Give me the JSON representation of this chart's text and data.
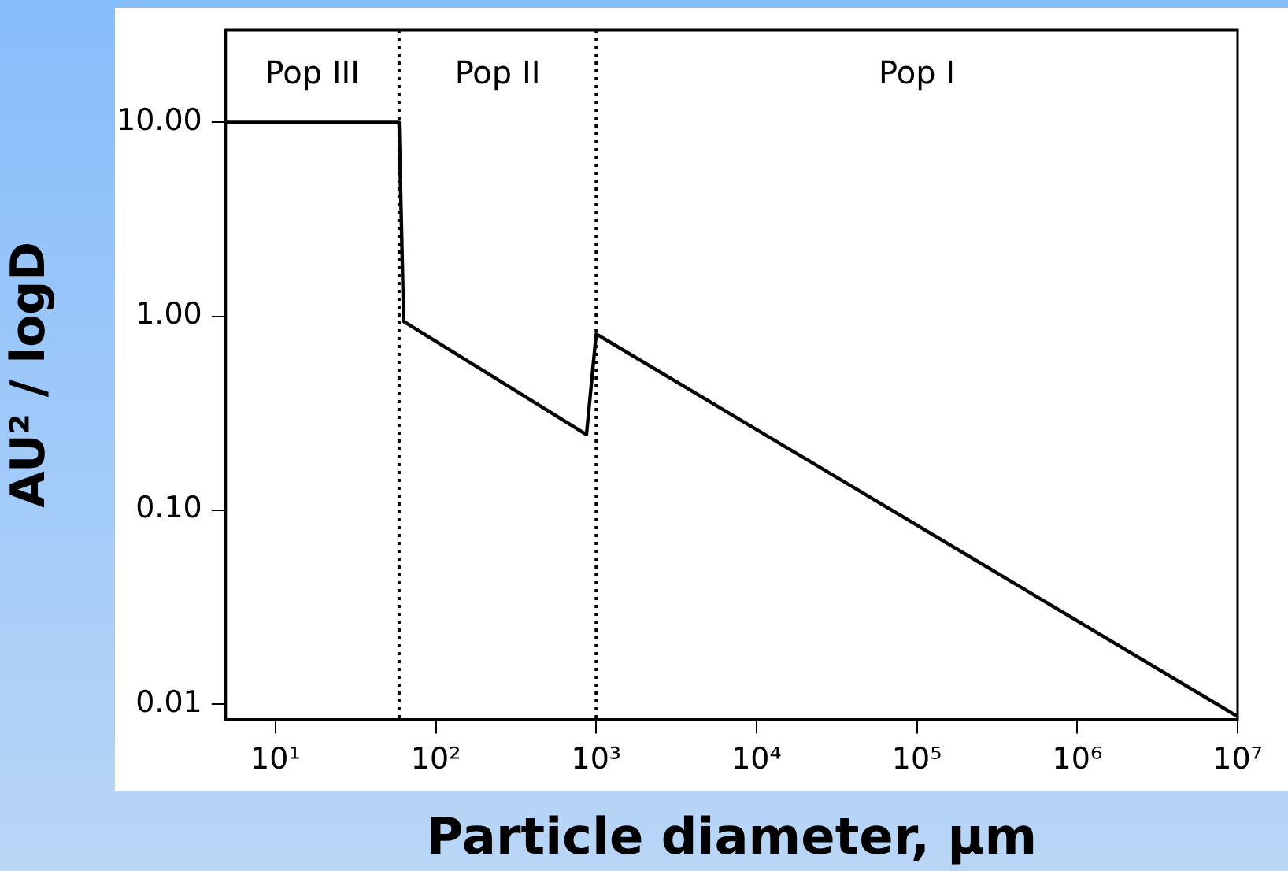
{
  "chart_data": {
    "type": "line",
    "xlabel": "Particle diameter, μm",
    "ylabel": "AU² / logD",
    "x": [
      4.9,
      59,
      63,
      870,
      1000,
      10000000
    ],
    "series": [
      {
        "color": "#000000",
        "values": [
          10,
          10,
          0.94,
          0.245,
          0.81,
          0.0086
        ]
      }
    ],
    "log": "xy",
    "xlim": [
      4.9,
      10000000
    ],
    "ylim": [
      0.0083,
      30
    ],
    "xticks": [
      {
        "value": 10,
        "label": "10¹"
      },
      {
        "value": 100,
        "label": "10²"
      },
      {
        "value": 1000,
        "label": "10³"
      },
      {
        "value": 10000,
        "label": "10⁴"
      },
      {
        "value": 100000,
        "label": "10⁵"
      },
      {
        "value": 1000000,
        "label": "10⁶"
      },
      {
        "value": 10000000,
        "label": "10⁷"
      }
    ],
    "yticks": [
      {
        "value": 0.01,
        "label": "0.01"
      },
      {
        "value": 0.1,
        "label": "0.10"
      },
      {
        "value": 1,
        "label": "1.00"
      },
      {
        "value": 10,
        "label": "10.00"
      }
    ],
    "ref_lines": [
      {
        "axis": "x",
        "value": 59,
        "color": "#000000",
        "line_style": "dotted"
      },
      {
        "axis": "x",
        "value": 1000,
        "color": "#000000",
        "line_style": "dotted"
      }
    ],
    "annotations": [
      "Pop III",
      "Pop II",
      "Pop I"
    ],
    "grid": false,
    "legend": false,
    "marker": "none",
    "line_style": "solid"
  }
}
